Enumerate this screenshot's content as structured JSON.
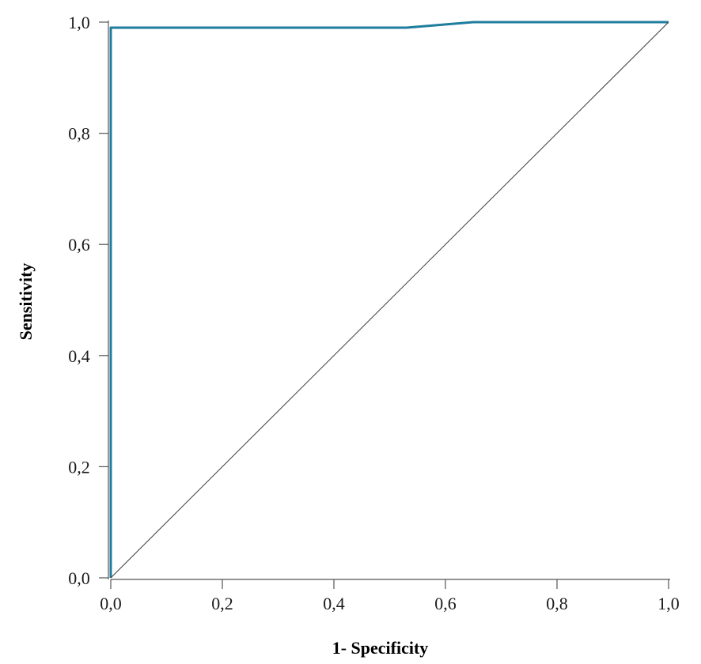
{
  "chart_data": {
    "type": "line",
    "title": "",
    "xlabel": "1- Specificity",
    "ylabel": "Sensitivity",
    "xlim": [
      0,
      1
    ],
    "ylim": [
      0,
      1
    ],
    "x_ticks": [
      "0,0",
      "0,2",
      "0,4",
      "0,6",
      "0,8",
      "1,0"
    ],
    "y_ticks": [
      "0,0",
      "0,2",
      "0,4",
      "0,6",
      "0,8",
      "1,0"
    ],
    "grid": false,
    "legend": "none",
    "series": [
      {
        "x": [
          0.0,
          0.0,
          0.53,
          0.65,
          1.0
        ],
        "y": [
          0.0,
          0.99,
          0.99,
          1.0,
          1.0
        ],
        "color": "#1f7d9e"
      },
      {
        "x": [
          0.0,
          1.0
        ],
        "y": [
          0.0,
          1.0
        ],
        "color": "#3a3a3a"
      }
    ]
  }
}
